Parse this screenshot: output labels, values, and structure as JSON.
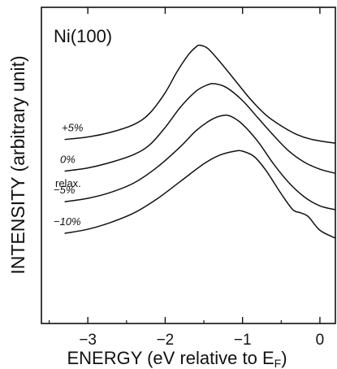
{
  "chart_data": {
    "type": "line",
    "title": "Ni(100)",
    "xlabel": "ENERGY (eV relative to E",
    "xlabel_sub": "F",
    "xlabel_close": ")",
    "ylabel": "INTENSITY (arbitrary unit)",
    "xlim": [
      -3.6,
      0.2
    ],
    "ylim": [
      0,
      10
    ],
    "x_ticks": [
      -3,
      -2,
      -1,
      0
    ],
    "x_tick_labels": [
      "−3",
      "−2",
      "−1",
      "0"
    ],
    "legend_header": "relax.",
    "series": [
      {
        "name": "+5%",
        "x": [
          -3.3,
          -3.0,
          -2.7,
          -2.4,
          -2.2,
          -2.0,
          -1.85,
          -1.7,
          -1.6,
          -1.55,
          -1.45,
          -1.3,
          -1.1,
          -0.9,
          -0.7,
          -0.5,
          -0.3,
          -0.1,
          0.2
        ],
        "y": [
          5.82,
          5.9,
          6.05,
          6.3,
          6.65,
          7.3,
          7.95,
          8.5,
          8.75,
          8.8,
          8.7,
          8.3,
          7.7,
          7.1,
          6.6,
          6.25,
          5.98,
          5.82,
          5.7
        ]
      },
      {
        "name": "0%",
        "x": [
          -3.3,
          -3.0,
          -2.7,
          -2.4,
          -2.2,
          -2.0,
          -1.8,
          -1.6,
          -1.45,
          -1.35,
          -1.2,
          -1.0,
          -0.8,
          -0.6,
          -0.4,
          -0.2,
          0.0,
          0.2
        ],
        "y": [
          4.82,
          4.92,
          5.1,
          5.35,
          5.65,
          6.2,
          6.85,
          7.35,
          7.55,
          7.58,
          7.45,
          7.05,
          6.5,
          5.95,
          5.45,
          5.1,
          4.88,
          4.75
        ]
      },
      {
        "name": "−5%",
        "x": [
          -3.3,
          -3.0,
          -2.7,
          -2.4,
          -2.1,
          -1.8,
          -1.6,
          -1.4,
          -1.25,
          -1.15,
          -1.0,
          -0.8,
          -0.6,
          -0.4,
          -0.2,
          0.0,
          0.2
        ],
        "y": [
          3.85,
          3.96,
          4.15,
          4.45,
          4.95,
          5.6,
          6.1,
          6.45,
          6.58,
          6.55,
          6.3,
          5.75,
          5.05,
          4.45,
          4.0,
          3.72,
          3.6
        ]
      },
      {
        "name": "−10%",
        "x": [
          -3.3,
          -3.0,
          -2.7,
          -2.4,
          -2.1,
          -1.8,
          -1.5,
          -1.3,
          -1.1,
          -1.0,
          -0.85,
          -0.7,
          -0.5,
          -0.35,
          -0.25,
          -0.15,
          0.0,
          0.2
        ],
        "y": [
          2.85,
          2.98,
          3.2,
          3.5,
          3.95,
          4.5,
          5.05,
          5.32,
          5.45,
          5.45,
          5.28,
          4.85,
          4.1,
          3.6,
          3.5,
          3.38,
          2.95,
          2.7
        ]
      }
    ],
    "grid": false,
    "y_ticks_labeled": false
  },
  "colors": {
    "curve": "#111111",
    "axis": "#111111",
    "background": "#ffffff"
  }
}
